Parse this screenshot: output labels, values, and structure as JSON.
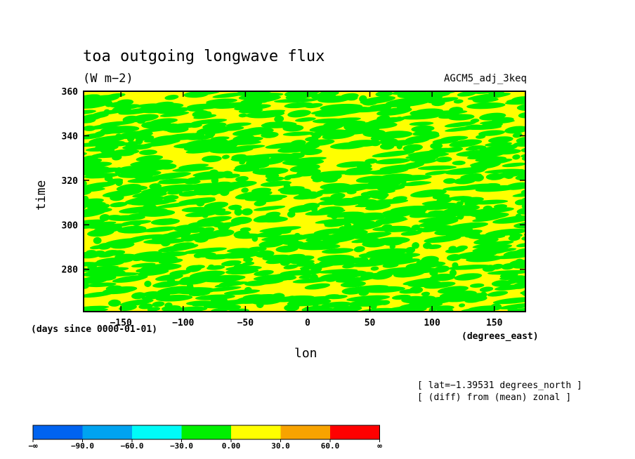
{
  "chart_data": {
    "type": "heatmap",
    "title": "toa outgoing longwave flux",
    "subtitle": "(W m−2)",
    "run_label": "AGCM5_adj_3keq",
    "xlabel": "lon",
    "x_units": "(degrees_east)",
    "ylabel": "time",
    "y_units": "(days since 0000-01-01)",
    "xlim": [
      -180,
      175
    ],
    "ylim": [
      261,
      360
    ],
    "x_ticks": [
      -150,
      -100,
      -50,
      0,
      50,
      100,
      150
    ],
    "y_ticks": [
      280,
      300,
      320,
      340,
      360
    ],
    "notes": [
      "[ lat=−1.39531 degrees_north ]",
      "[ (diff) from (mean) zonal ]"
    ],
    "colorbar": {
      "colors": [
        "#0063f0",
        "#00a3f0",
        "#00fbf8",
        "#00f000",
        "#ffff00",
        "#f8a300",
        "#ff0000"
      ],
      "labels": [
        "−∞",
        "−90.0",
        "−60.0",
        "−30.0",
        "0.00",
        "30.0",
        "60.0",
        "∞"
      ]
    },
    "field_colors": {
      "negative": "#00f000",
      "positive": "#ffff00"
    }
  }
}
